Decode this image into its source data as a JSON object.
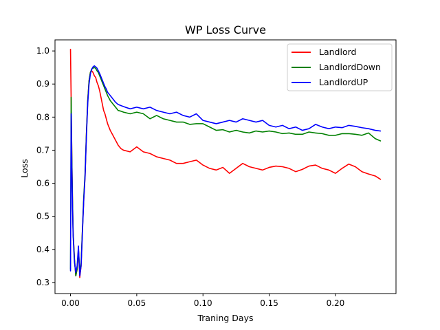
{
  "chart_data": {
    "type": "line",
    "title": "WP Loss Curve",
    "xlabel": "Traning Days",
    "ylabel": "Loss",
    "xlim": [
      -0.0117,
      0.2457
    ],
    "ylim": [
      0.2665,
      1.0335
    ],
    "xticks": [
      0.0,
      0.05,
      0.1,
      0.15,
      0.2
    ],
    "xtick_labels": [
      "0.00",
      "0.05",
      "0.10",
      "0.15",
      "0.20"
    ],
    "yticks": [
      0.3,
      0.4,
      0.5,
      0.6,
      0.7,
      0.8,
      0.9,
      1.0
    ],
    "ytick_labels": [
      "0.3",
      "0.4",
      "0.5",
      "0.6",
      "0.7",
      "0.8",
      "0.9",
      "1.0"
    ],
    "grid": false,
    "legend_position": "upper right",
    "series": [
      {
        "name": "Landlord",
        "color": "#ff0000",
        "x": [
          0.0,
          0.0005,
          0.001,
          0.0015,
          0.002,
          0.003,
          0.004,
          0.005,
          0.006,
          0.007,
          0.008,
          0.009,
          0.01,
          0.011,
          0.012,
          0.013,
          0.014,
          0.015,
          0.016,
          0.017,
          0.018,
          0.019,
          0.02,
          0.021,
          0.022,
          0.023,
          0.024,
          0.025,
          0.026,
          0.027,
          0.028,
          0.03,
          0.032,
          0.034,
          0.036,
          0.038,
          0.04,
          0.045,
          0.05,
          0.055,
          0.06,
          0.065,
          0.07,
          0.075,
          0.08,
          0.085,
          0.09,
          0.095,
          0.1,
          0.105,
          0.11,
          0.115,
          0.12,
          0.125,
          0.13,
          0.135,
          0.14,
          0.145,
          0.15,
          0.155,
          0.16,
          0.165,
          0.17,
          0.175,
          0.18,
          0.185,
          0.19,
          0.195,
          0.2,
          0.205,
          0.21,
          0.215,
          0.22,
          0.225,
          0.23,
          0.234
        ],
        "y": [
          1.005,
          0.85,
          0.68,
          0.55,
          0.45,
          0.37,
          0.32,
          0.34,
          0.4,
          0.315,
          0.35,
          0.46,
          0.55,
          0.62,
          0.75,
          0.85,
          0.91,
          0.935,
          0.94,
          0.935,
          0.925,
          0.92,
          0.905,
          0.895,
          0.88,
          0.86,
          0.84,
          0.82,
          0.81,
          0.795,
          0.78,
          0.76,
          0.745,
          0.73,
          0.715,
          0.705,
          0.7,
          0.695,
          0.71,
          0.695,
          0.69,
          0.68,
          0.675,
          0.67,
          0.66,
          0.66,
          0.665,
          0.67,
          0.655,
          0.645,
          0.64,
          0.648,
          0.63,
          0.645,
          0.66,
          0.65,
          0.645,
          0.64,
          0.648,
          0.652,
          0.65,
          0.645,
          0.635,
          0.642,
          0.652,
          0.655,
          0.645,
          0.64,
          0.63,
          0.645,
          0.658,
          0.65,
          0.635,
          0.628,
          0.622,
          0.612
        ]
      },
      {
        "name": "LandlordDown",
        "color": "#008000",
        "x": [
          0.0,
          0.0005,
          0.001,
          0.0015,
          0.002,
          0.003,
          0.004,
          0.005,
          0.006,
          0.007,
          0.008,
          0.009,
          0.01,
          0.011,
          0.012,
          0.013,
          0.014,
          0.015,
          0.016,
          0.017,
          0.018,
          0.019,
          0.02,
          0.021,
          0.022,
          0.023,
          0.024,
          0.025,
          0.026,
          0.027,
          0.028,
          0.03,
          0.032,
          0.034,
          0.036,
          0.038,
          0.04,
          0.045,
          0.05,
          0.055,
          0.06,
          0.065,
          0.07,
          0.075,
          0.08,
          0.085,
          0.09,
          0.095,
          0.1,
          0.105,
          0.11,
          0.115,
          0.12,
          0.125,
          0.13,
          0.135,
          0.14,
          0.145,
          0.15,
          0.155,
          0.16,
          0.165,
          0.17,
          0.175,
          0.18,
          0.185,
          0.19,
          0.195,
          0.2,
          0.205,
          0.21,
          0.215,
          0.22,
          0.225,
          0.23,
          0.234
        ],
        "y": [
          0.34,
          0.86,
          0.68,
          0.55,
          0.45,
          0.37,
          0.32,
          0.34,
          0.4,
          0.33,
          0.36,
          0.46,
          0.56,
          0.63,
          0.75,
          0.85,
          0.91,
          0.935,
          0.945,
          0.948,
          0.95,
          0.947,
          0.94,
          0.935,
          0.925,
          0.915,
          0.905,
          0.895,
          0.885,
          0.875,
          0.865,
          0.85,
          0.84,
          0.83,
          0.82,
          0.818,
          0.815,
          0.81,
          0.815,
          0.81,
          0.795,
          0.805,
          0.795,
          0.79,
          0.785,
          0.785,
          0.778,
          0.78,
          0.78,
          0.77,
          0.76,
          0.762,
          0.755,
          0.76,
          0.755,
          0.752,
          0.758,
          0.755,
          0.758,
          0.755,
          0.75,
          0.752,
          0.748,
          0.748,
          0.755,
          0.752,
          0.75,
          0.745,
          0.745,
          0.75,
          0.75,
          0.748,
          0.745,
          0.752,
          0.735,
          0.728
        ]
      },
      {
        "name": "LandlordUP",
        "color": "#0000ff",
        "x": [
          0.0,
          0.0005,
          0.001,
          0.0015,
          0.002,
          0.003,
          0.004,
          0.005,
          0.006,
          0.007,
          0.008,
          0.009,
          0.01,
          0.011,
          0.012,
          0.013,
          0.014,
          0.015,
          0.016,
          0.017,
          0.018,
          0.019,
          0.02,
          0.021,
          0.022,
          0.023,
          0.024,
          0.025,
          0.026,
          0.027,
          0.028,
          0.03,
          0.032,
          0.034,
          0.036,
          0.038,
          0.04,
          0.045,
          0.05,
          0.055,
          0.06,
          0.065,
          0.07,
          0.075,
          0.08,
          0.085,
          0.09,
          0.095,
          0.1,
          0.105,
          0.11,
          0.115,
          0.12,
          0.125,
          0.13,
          0.135,
          0.14,
          0.145,
          0.15,
          0.155,
          0.16,
          0.165,
          0.17,
          0.175,
          0.18,
          0.185,
          0.19,
          0.195,
          0.2,
          0.205,
          0.21,
          0.215,
          0.22,
          0.225,
          0.23,
          0.234
        ],
        "y": [
          0.335,
          0.81,
          0.65,
          0.53,
          0.44,
          0.36,
          0.33,
          0.35,
          0.41,
          0.32,
          0.35,
          0.45,
          0.55,
          0.62,
          0.74,
          0.84,
          0.9,
          0.93,
          0.945,
          0.952,
          0.955,
          0.952,
          0.948,
          0.94,
          0.932,
          0.922,
          0.912,
          0.902,
          0.892,
          0.885,
          0.875,
          0.865,
          0.855,
          0.845,
          0.838,
          0.835,
          0.832,
          0.825,
          0.83,
          0.825,
          0.83,
          0.82,
          0.815,
          0.81,
          0.815,
          0.805,
          0.8,
          0.81,
          0.79,
          0.785,
          0.78,
          0.785,
          0.79,
          0.785,
          0.795,
          0.79,
          0.785,
          0.79,
          0.775,
          0.77,
          0.775,
          0.765,
          0.77,
          0.76,
          0.765,
          0.778,
          0.77,
          0.765,
          0.77,
          0.768,
          0.775,
          0.772,
          0.768,
          0.765,
          0.76,
          0.758
        ]
      }
    ]
  }
}
